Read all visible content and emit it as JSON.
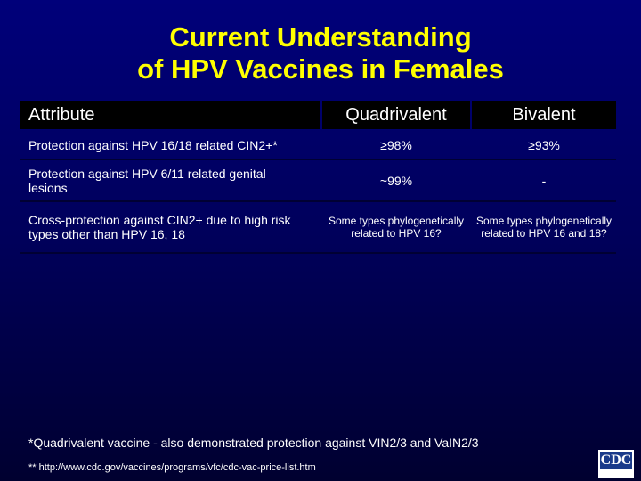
{
  "header": {
    "title_line1": "Current Understanding",
    "title_line2": "of HPV Vaccines in Females"
  },
  "table": {
    "columns": [
      "Attribute",
      "Quadrivalent",
      "Bivalent"
    ],
    "rows": [
      [
        "Protection against HPV 16/18 related CIN2+*",
        "≥98%",
        "≥93%"
      ],
      [
        "Protection against HPV 6/11 related genital lesions",
        "~99%",
        "-"
      ],
      [
        "Cross-protection against CIN2+ due to high risk types other than HPV 16, 18",
        "Some types phylogenetically related to HPV 16?",
        "Some types phylogenetically related to HPV 16 and 18?"
      ]
    ]
  },
  "footnotes": [
    "*Quadrivalent vaccine - also demonstrated protection against VIN2/3 and VaIN2/3",
    "** http://www.cdc.gov/vaccines/programs/vfc/cdc-vac-price-list.htm"
  ],
  "logo": "CDC"
}
